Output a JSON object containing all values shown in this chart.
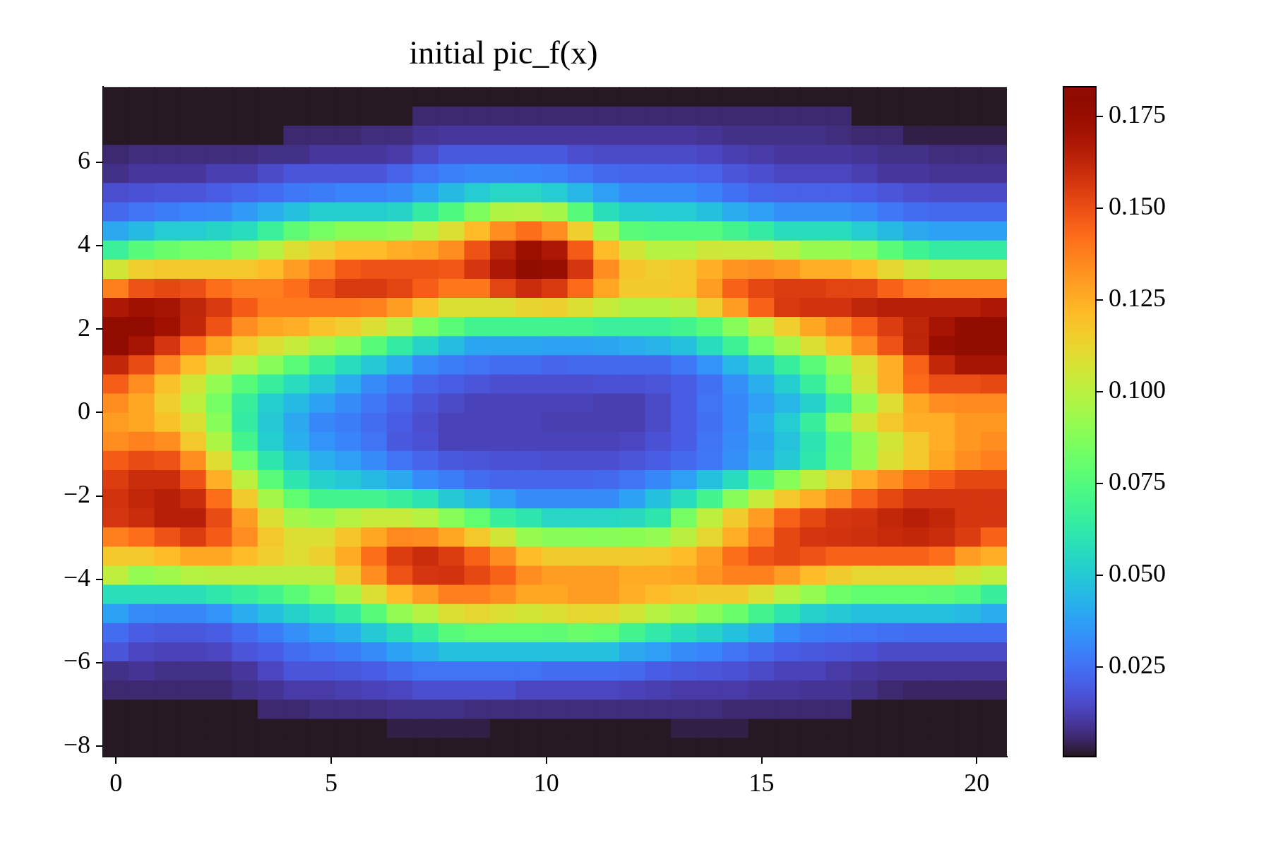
{
  "chart_data": {
    "type": "heatmap",
    "title": "initial pic_f(x)",
    "xlim": [
      -0.3,
      20.7
    ],
    "ylim": [
      -8.25,
      7.8
    ],
    "xticks": [
      0,
      5,
      10,
      15,
      20
    ],
    "yticks": [
      -8,
      -6,
      -4,
      -2,
      0,
      2,
      4,
      6
    ],
    "clim": [
      0.0005,
      0.183
    ],
    "cticks": [
      0.025,
      {
        "value": 0.05,
        "label": "0.050"
      },
      0.075,
      {
        "value": 0.1,
        "label": "0.100"
      },
      0.125,
      {
        "value": 0.15,
        "label": "0.150"
      },
      0.175
    ],
    "cells": [
      [
        0.001,
        0.001,
        0.001,
        0.001,
        0.001,
        0.001,
        0.001,
        0.001,
        0.001,
        0.001,
        0.001,
        0.001,
        0.001,
        0.001,
        0.001,
        0.001,
        0.001,
        0.001,
        0.001,
        0.001,
        0.001,
        0.001,
        0.001,
        0.001,
        0.001,
        0.001,
        0.001,
        0.001,
        0.001,
        0.001,
        0.001,
        0.001,
        0.001,
        0.001,
        0.001
      ],
      [
        0.001,
        0.001,
        0.001,
        0.001,
        0.001,
        0.001,
        0.001,
        0.001,
        0.001,
        0.001,
        0.001,
        0.001,
        0.006,
        0.006,
        0.006,
        0.006,
        0.006,
        0.006,
        0.006,
        0.006,
        0.006,
        0.006,
        0.006,
        0.006,
        0.006,
        0.006,
        0.006,
        0.006,
        0.006,
        0.001,
        0.001,
        0.001,
        0.001,
        0.001,
        0.001
      ],
      [
        0.001,
        0.001,
        0.001,
        0.001,
        0.001,
        0.001,
        0.001,
        0.006,
        0.006,
        0.006,
        0.007,
        0.007,
        0.009,
        0.01,
        0.01,
        0.01,
        0.01,
        0.01,
        0.01,
        0.01,
        0.01,
        0.01,
        0.01,
        0.009,
        0.008,
        0.008,
        0.008,
        0.008,
        0.007,
        0.006,
        0.006,
        0.003,
        0.003,
        0.003,
        0.003
      ],
      [
        0.006,
        0.007,
        0.007,
        0.007,
        0.007,
        0.007,
        0.008,
        0.008,
        0.01,
        0.01,
        0.01,
        0.011,
        0.015,
        0.019,
        0.019,
        0.019,
        0.019,
        0.019,
        0.016,
        0.015,
        0.015,
        0.015,
        0.015,
        0.014,
        0.012,
        0.011,
        0.01,
        0.01,
        0.01,
        0.009,
        0.008,
        0.008,
        0.007,
        0.007,
        0.007
      ],
      [
        0.008,
        0.01,
        0.01,
        0.01,
        0.012,
        0.012,
        0.015,
        0.018,
        0.018,
        0.018,
        0.018,
        0.021,
        0.026,
        0.029,
        0.031,
        0.031,
        0.03,
        0.029,
        0.026,
        0.023,
        0.022,
        0.022,
        0.022,
        0.021,
        0.018,
        0.016,
        0.014,
        0.014,
        0.014,
        0.012,
        0.01,
        0.01,
        0.009,
        0.009,
        0.009
      ],
      [
        0.016,
        0.017,
        0.018,
        0.018,
        0.02,
        0.022,
        0.024,
        0.027,
        0.028,
        0.03,
        0.03,
        0.032,
        0.038,
        0.045,
        0.051,
        0.055,
        0.055,
        0.051,
        0.044,
        0.037,
        0.032,
        0.032,
        0.032,
        0.029,
        0.025,
        0.022,
        0.021,
        0.021,
        0.021,
        0.02,
        0.018,
        0.016,
        0.015,
        0.015,
        0.015
      ],
      [
        0.023,
        0.026,
        0.028,
        0.03,
        0.031,
        0.036,
        0.042,
        0.047,
        0.052,
        0.052,
        0.052,
        0.054,
        0.064,
        0.074,
        0.086,
        0.098,
        0.099,
        0.095,
        0.076,
        0.058,
        0.052,
        0.051,
        0.051,
        0.047,
        0.041,
        0.037,
        0.033,
        0.033,
        0.033,
        0.031,
        0.027,
        0.024,
        0.023,
        0.023,
        0.023
      ],
      [
        0.04,
        0.045,
        0.051,
        0.051,
        0.054,
        0.057,
        0.067,
        0.078,
        0.084,
        0.089,
        0.089,
        0.091,
        0.099,
        0.109,
        0.121,
        0.134,
        0.142,
        0.134,
        0.115,
        0.094,
        0.077,
        0.075,
        0.075,
        0.075,
        0.07,
        0.064,
        0.057,
        0.057,
        0.057,
        0.051,
        0.045,
        0.04,
        0.038,
        0.038,
        0.038
      ],
      [
        0.067,
        0.076,
        0.081,
        0.084,
        0.084,
        0.091,
        0.099,
        0.109,
        0.115,
        0.121,
        0.121,
        0.125,
        0.127,
        0.134,
        0.149,
        0.163,
        0.173,
        0.168,
        0.147,
        0.121,
        0.106,
        0.099,
        0.099,
        0.105,
        0.104,
        0.104,
        0.099,
        0.092,
        0.092,
        0.088,
        0.077,
        0.069,
        0.064,
        0.064,
        0.064
      ],
      [
        0.106,
        0.115,
        0.117,
        0.117,
        0.117,
        0.117,
        0.121,
        0.13,
        0.138,
        0.147,
        0.149,
        0.149,
        0.149,
        0.148,
        0.157,
        0.168,
        0.179,
        0.175,
        0.157,
        0.134,
        0.118,
        0.115,
        0.117,
        0.125,
        0.132,
        0.134,
        0.131,
        0.125,
        0.125,
        0.121,
        0.112,
        0.105,
        0.1,
        0.1,
        0.1
      ],
      [
        0.138,
        0.149,
        0.152,
        0.15,
        0.142,
        0.138,
        0.138,
        0.142,
        0.15,
        0.156,
        0.156,
        0.153,
        0.146,
        0.14,
        0.14,
        0.153,
        0.16,
        0.156,
        0.143,
        0.127,
        0.116,
        0.116,
        0.117,
        0.13,
        0.145,
        0.152,
        0.155,
        0.155,
        0.153,
        0.153,
        0.145,
        0.139,
        0.137,
        0.137,
        0.137
      ],
      [
        0.168,
        0.172,
        0.17,
        0.163,
        0.156,
        0.147,
        0.139,
        0.139,
        0.139,
        0.139,
        0.137,
        0.13,
        0.119,
        0.109,
        0.109,
        0.109,
        0.113,
        0.114,
        0.109,
        0.103,
        0.098,
        0.098,
        0.1,
        0.115,
        0.13,
        0.145,
        0.156,
        0.158,
        0.158,
        0.163,
        0.165,
        0.165,
        0.165,
        0.165,
        0.168
      ],
      [
        0.183,
        0.18,
        0.172,
        0.162,
        0.149,
        0.134,
        0.127,
        0.125,
        0.119,
        0.115,
        0.109,
        0.1,
        0.086,
        0.077,
        0.07,
        0.07,
        0.07,
        0.07,
        0.07,
        0.067,
        0.067,
        0.067,
        0.07,
        0.076,
        0.088,
        0.101,
        0.115,
        0.127,
        0.136,
        0.145,
        0.155,
        0.163,
        0.17,
        0.178,
        0.183
      ],
      [
        0.18,
        0.17,
        0.157,
        0.142,
        0.128,
        0.117,
        0.109,
        0.103,
        0.095,
        0.088,
        0.076,
        0.064,
        0.054,
        0.046,
        0.039,
        0.039,
        0.039,
        0.038,
        0.038,
        0.039,
        0.041,
        0.043,
        0.047,
        0.057,
        0.068,
        0.083,
        0.095,
        0.109,
        0.119,
        0.134,
        0.149,
        0.163,
        0.175,
        0.183,
        0.183
      ],
      [
        0.162,
        0.151,
        0.136,
        0.121,
        0.109,
        0.099,
        0.088,
        0.077,
        0.066,
        0.057,
        0.05,
        0.042,
        0.032,
        0.028,
        0.026,
        0.024,
        0.024,
        0.022,
        0.023,
        0.023,
        0.023,
        0.023,
        0.027,
        0.034,
        0.044,
        0.053,
        0.066,
        0.077,
        0.091,
        0.109,
        0.125,
        0.145,
        0.162,
        0.17,
        0.17
      ],
      [
        0.146,
        0.134,
        0.119,
        0.106,
        0.091,
        0.076,
        0.066,
        0.057,
        0.05,
        0.041,
        0.032,
        0.027,
        0.022,
        0.02,
        0.018,
        0.016,
        0.016,
        0.016,
        0.016,
        0.017,
        0.017,
        0.018,
        0.02,
        0.025,
        0.033,
        0.042,
        0.052,
        0.066,
        0.084,
        0.106,
        0.125,
        0.143,
        0.15,
        0.15,
        0.152
      ],
      [
        0.134,
        0.127,
        0.115,
        0.101,
        0.084,
        0.066,
        0.052,
        0.045,
        0.038,
        0.032,
        0.027,
        0.022,
        0.018,
        0.015,
        0.013,
        0.013,
        0.013,
        0.013,
        0.013,
        0.012,
        0.012,
        0.015,
        0.02,
        0.026,
        0.031,
        0.037,
        0.044,
        0.053,
        0.07,
        0.091,
        0.11,
        0.127,
        0.134,
        0.135,
        0.135
      ],
      [
        0.13,
        0.127,
        0.119,
        0.109,
        0.088,
        0.064,
        0.05,
        0.04,
        0.031,
        0.028,
        0.024,
        0.02,
        0.016,
        0.013,
        0.013,
        0.013,
        0.013,
        0.012,
        0.012,
        0.012,
        0.012,
        0.015,
        0.02,
        0.025,
        0.031,
        0.041,
        0.051,
        0.066,
        0.088,
        0.106,
        0.117,
        0.125,
        0.125,
        0.131,
        0.131
      ],
      [
        0.134,
        0.137,
        0.134,
        0.117,
        0.097,
        0.07,
        0.052,
        0.042,
        0.034,
        0.03,
        0.026,
        0.019,
        0.017,
        0.013,
        0.013,
        0.013,
        0.013,
        0.013,
        0.013,
        0.013,
        0.014,
        0.017,
        0.02,
        0.026,
        0.032,
        0.039,
        0.048,
        0.06,
        0.076,
        0.091,
        0.106,
        0.117,
        0.125,
        0.131,
        0.134
      ],
      [
        0.147,
        0.151,
        0.149,
        0.134,
        0.11,
        0.083,
        0.061,
        0.05,
        0.042,
        0.037,
        0.032,
        0.026,
        0.022,
        0.019,
        0.018,
        0.017,
        0.017,
        0.016,
        0.016,
        0.016,
        0.018,
        0.02,
        0.023,
        0.027,
        0.033,
        0.041,
        0.05,
        0.062,
        0.077,
        0.092,
        0.109,
        0.117,
        0.127,
        0.134,
        0.138
      ],
      [
        0.155,
        0.16,
        0.16,
        0.149,
        0.125,
        0.101,
        0.077,
        0.061,
        0.053,
        0.05,
        0.045,
        0.04,
        0.032,
        0.028,
        0.024,
        0.022,
        0.022,
        0.022,
        0.022,
        0.023,
        0.026,
        0.031,
        0.037,
        0.047,
        0.057,
        0.074,
        0.088,
        0.101,
        0.112,
        0.125,
        0.134,
        0.142,
        0.147,
        0.152,
        0.152
      ],
      [
        0.158,
        0.162,
        0.165,
        0.16,
        0.142,
        0.116,
        0.095,
        0.079,
        0.07,
        0.07,
        0.07,
        0.066,
        0.06,
        0.05,
        0.044,
        0.037,
        0.032,
        0.032,
        0.032,
        0.032,
        0.038,
        0.047,
        0.057,
        0.07,
        0.088,
        0.103,
        0.117,
        0.125,
        0.134,
        0.145,
        0.152,
        0.157,
        0.157,
        0.157,
        0.157
      ],
      [
        0.157,
        0.16,
        0.165,
        0.165,
        0.151,
        0.13,
        0.109,
        0.095,
        0.092,
        0.099,
        0.103,
        0.103,
        0.099,
        0.088,
        0.079,
        0.066,
        0.061,
        0.055,
        0.055,
        0.055,
        0.056,
        0.061,
        0.084,
        0.101,
        0.116,
        0.13,
        0.145,
        0.152,
        0.157,
        0.158,
        0.162,
        0.165,
        0.162,
        0.157,
        0.157
      ],
      [
        0.138,
        0.142,
        0.149,
        0.155,
        0.147,
        0.134,
        0.117,
        0.109,
        0.109,
        0.118,
        0.127,
        0.135,
        0.134,
        0.127,
        0.117,
        0.106,
        0.092,
        0.088,
        0.088,
        0.088,
        0.089,
        0.091,
        0.1,
        0.112,
        0.125,
        0.138,
        0.152,
        0.157,
        0.158,
        0.159,
        0.161,
        0.162,
        0.16,
        0.155,
        0.145
      ],
      [
        0.117,
        0.117,
        0.121,
        0.127,
        0.127,
        0.121,
        0.115,
        0.11,
        0.114,
        0.126,
        0.142,
        0.155,
        0.16,
        0.155,
        0.145,
        0.134,
        0.121,
        0.116,
        0.116,
        0.116,
        0.116,
        0.117,
        0.121,
        0.13,
        0.142,
        0.149,
        0.152,
        0.149,
        0.145,
        0.145,
        0.145,
        0.145,
        0.142,
        0.13,
        0.125
      ],
      [
        0.101,
        0.091,
        0.094,
        0.099,
        0.1,
        0.1,
        0.1,
        0.1,
        0.1,
        0.116,
        0.134,
        0.149,
        0.157,
        0.158,
        0.152,
        0.145,
        0.134,
        0.13,
        0.13,
        0.13,
        0.126,
        0.126,
        0.127,
        0.132,
        0.137,
        0.137,
        0.13,
        0.121,
        0.116,
        0.112,
        0.112,
        0.112,
        0.112,
        0.106,
        0.101
      ],
      [
        0.058,
        0.058,
        0.058,
        0.058,
        0.062,
        0.066,
        0.07,
        0.077,
        0.084,
        0.095,
        0.109,
        0.121,
        0.13,
        0.138,
        0.138,
        0.134,
        0.127,
        0.127,
        0.13,
        0.13,
        0.125,
        0.121,
        0.118,
        0.116,
        0.116,
        0.109,
        0.099,
        0.091,
        0.082,
        0.079,
        0.079,
        0.079,
        0.078,
        0.075,
        0.066
      ],
      [
        0.038,
        0.032,
        0.031,
        0.031,
        0.034,
        0.041,
        0.047,
        0.053,
        0.057,
        0.064,
        0.076,
        0.091,
        0.099,
        0.109,
        0.112,
        0.109,
        0.106,
        0.109,
        0.112,
        0.112,
        0.106,
        0.099,
        0.095,
        0.088,
        0.081,
        0.07,
        0.061,
        0.053,
        0.05,
        0.047,
        0.047,
        0.047,
        0.047,
        0.045,
        0.041
      ],
      [
        0.024,
        0.02,
        0.019,
        0.019,
        0.02,
        0.024,
        0.028,
        0.033,
        0.038,
        0.042,
        0.05,
        0.057,
        0.066,
        0.076,
        0.079,
        0.079,
        0.079,
        0.078,
        0.081,
        0.079,
        0.07,
        0.063,
        0.057,
        0.053,
        0.047,
        0.041,
        0.032,
        0.028,
        0.027,
        0.026,
        0.025,
        0.024,
        0.024,
        0.024,
        0.024
      ],
      [
        0.018,
        0.014,
        0.013,
        0.013,
        0.014,
        0.018,
        0.02,
        0.024,
        0.026,
        0.028,
        0.032,
        0.038,
        0.042,
        0.047,
        0.047,
        0.047,
        0.047,
        0.047,
        0.047,
        0.047,
        0.04,
        0.037,
        0.032,
        0.03,
        0.026,
        0.023,
        0.02,
        0.019,
        0.018,
        0.017,
        0.015,
        0.015,
        0.015,
        0.015,
        0.015
      ],
      [
        0.008,
        0.009,
        0.008,
        0.008,
        0.008,
        0.01,
        0.014,
        0.018,
        0.018,
        0.019,
        0.02,
        0.023,
        0.026,
        0.026,
        0.026,
        0.026,
        0.026,
        0.024,
        0.024,
        0.024,
        0.023,
        0.02,
        0.019,
        0.018,
        0.017,
        0.015,
        0.013,
        0.013,
        0.011,
        0.01,
        0.009,
        0.009,
        0.009,
        0.009,
        0.009
      ],
      [
        0.006,
        0.006,
        0.006,
        0.006,
        0.006,
        0.008,
        0.009,
        0.011,
        0.011,
        0.012,
        0.013,
        0.014,
        0.016,
        0.016,
        0.016,
        0.016,
        0.014,
        0.014,
        0.014,
        0.014,
        0.013,
        0.012,
        0.011,
        0.011,
        0.011,
        0.01,
        0.01,
        0.009,
        0.009,
        0.008,
        0.006,
        0.005,
        0.005,
        0.005,
        0.005
      ],
      [
        0.001,
        0.001,
        0.001,
        0.001,
        0.001,
        0.001,
        0.006,
        0.006,
        0.007,
        0.007,
        0.007,
        0.008,
        0.008,
        0.008,
        0.007,
        0.007,
        0.007,
        0.007,
        0.007,
        0.007,
        0.007,
        0.007,
        0.007,
        0.007,
        0.006,
        0.006,
        0.006,
        0.006,
        0.006,
        0.001,
        0.001,
        0.001,
        0.001,
        0.001,
        0.001
      ],
      [
        0.001,
        0.001,
        0.001,
        0.001,
        0.001,
        0.001,
        0.001,
        0.001,
        0.001,
        0.001,
        0.001,
        0.003,
        0.003,
        0.003,
        0.003,
        0.001,
        0.001,
        0.001,
        0.001,
        0.001,
        0.001,
        0.001,
        0.003,
        0.003,
        0.003,
        0.001,
        0.001,
        0.001,
        0.001,
        0.001,
        0.001,
        0.001,
        0.001,
        0.001,
        0.001
      ],
      [
        0.001,
        0.001,
        0.001,
        0.001,
        0.001,
        0.001,
        0.001,
        0.001,
        0.001,
        0.001,
        0.001,
        0.001,
        0.001,
        0.001,
        0.001,
        0.001,
        0.001,
        0.001,
        0.001,
        0.001,
        0.001,
        0.001,
        0.001,
        0.001,
        0.001,
        0.001,
        0.001,
        0.001,
        0.001,
        0.001,
        0.001,
        0.001,
        0.001,
        0.001,
        0.001
      ]
    ]
  }
}
